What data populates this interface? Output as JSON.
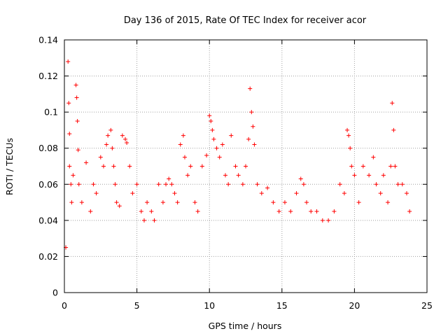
{
  "chart_data": {
    "type": "scatter",
    "title": "Day 136 of 2015, Rate Of TEC Index for receiver acor",
    "xlabel": "GPS time / hours",
    "ylabel": "ROTI / TECUs",
    "xlim": [
      0,
      25
    ],
    "ylim": [
      0,
      0.14
    ],
    "xticks": [
      0,
      5,
      10,
      15,
      20,
      25
    ],
    "yticks": [
      0,
      0.02,
      0.04,
      0.06,
      0.08,
      0.1,
      0.12,
      0.14
    ],
    "xtick_labels": [
      "0",
      "5",
      "10",
      "15",
      "20",
      "25"
    ],
    "ytick_labels": [
      "0",
      "0.02",
      "0.04",
      "0.06",
      "0.08",
      "0.1",
      "0.12",
      "0.14"
    ],
    "grid": true,
    "marker": "+",
    "marker_color": "#ff0000",
    "series": [
      {
        "x": [
          0.1,
          0.25,
          0.3,
          0.35,
          0.35,
          0.45,
          0.5,
          0.6,
          0.8,
          0.85,
          0.9,
          0.95,
          1.0,
          1.2,
          1.5,
          1.8,
          2.0,
          2.2,
          2.5,
          2.7,
          2.9,
          3.0,
          3.2,
          3.3,
          3.4,
          3.5,
          3.6,
          3.8,
          4.0,
          4.2,
          4.3,
          4.5,
          4.7,
          5.0,
          5.3,
          5.5,
          5.7,
          6.0,
          6.2,
          6.5,
          6.8,
          7.0,
          7.2,
          7.4,
          7.6,
          7.8,
          8.0,
          8.2,
          8.3,
          8.5,
          8.7,
          9.0,
          9.2,
          9.5,
          9.8,
          10.0,
          10.1,
          10.2,
          10.3,
          10.5,
          10.7,
          10.9,
          11.1,
          11.3,
          11.5,
          11.8,
          12.0,
          12.3,
          12.5,
          12.7,
          12.8,
          12.9,
          13.0,
          13.1,
          13.3,
          13.6,
          14.0,
          14.4,
          14.8,
          15.2,
          15.6,
          16.0,
          16.3,
          16.5,
          16.7,
          17.0,
          17.4,
          17.8,
          18.2,
          18.6,
          19.0,
          19.3,
          19.5,
          19.6,
          19.7,
          19.8,
          20.0,
          20.3,
          20.6,
          21.0,
          21.3,
          21.5,
          21.8,
          22.0,
          22.3,
          22.5,
          22.6,
          22.7,
          22.8,
          23.0,
          23.3,
          23.6,
          23.8
        ],
        "y": [
          0.025,
          0.128,
          0.105,
          0.088,
          0.07,
          0.06,
          0.05,
          0.065,
          0.115,
          0.108,
          0.095,
          0.079,
          0.06,
          0.05,
          0.072,
          0.045,
          0.06,
          0.055,
          0.075,
          0.07,
          0.082,
          0.087,
          0.09,
          0.08,
          0.07,
          0.06,
          0.05,
          0.048,
          0.087,
          0.085,
          0.083,
          0.07,
          0.055,
          0.06,
          0.045,
          0.04,
          0.05,
          0.045,
          0.04,
          0.06,
          0.05,
          0.06,
          0.063,
          0.06,
          0.055,
          0.05,
          0.082,
          0.087,
          0.075,
          0.065,
          0.07,
          0.05,
          0.045,
          0.07,
          0.076,
          0.098,
          0.095,
          0.09,
          0.085,
          0.08,
          0.075,
          0.082,
          0.065,
          0.06,
          0.087,
          0.07,
          0.065,
          0.06,
          0.07,
          0.085,
          0.113,
          0.1,
          0.092,
          0.082,
          0.06,
          0.055,
          0.058,
          0.05,
          0.045,
          0.05,
          0.045,
          0.055,
          0.063,
          0.06,
          0.05,
          0.045,
          0.045,
          0.04,
          0.04,
          0.045,
          0.06,
          0.055,
          0.09,
          0.087,
          0.08,
          0.07,
          0.065,
          0.05,
          0.07,
          0.065,
          0.075,
          0.06,
          0.055,
          0.065,
          0.05,
          0.07,
          0.105,
          0.09,
          0.07,
          0.06,
          0.06,
          0.055,
          0.045
        ]
      }
    ]
  }
}
